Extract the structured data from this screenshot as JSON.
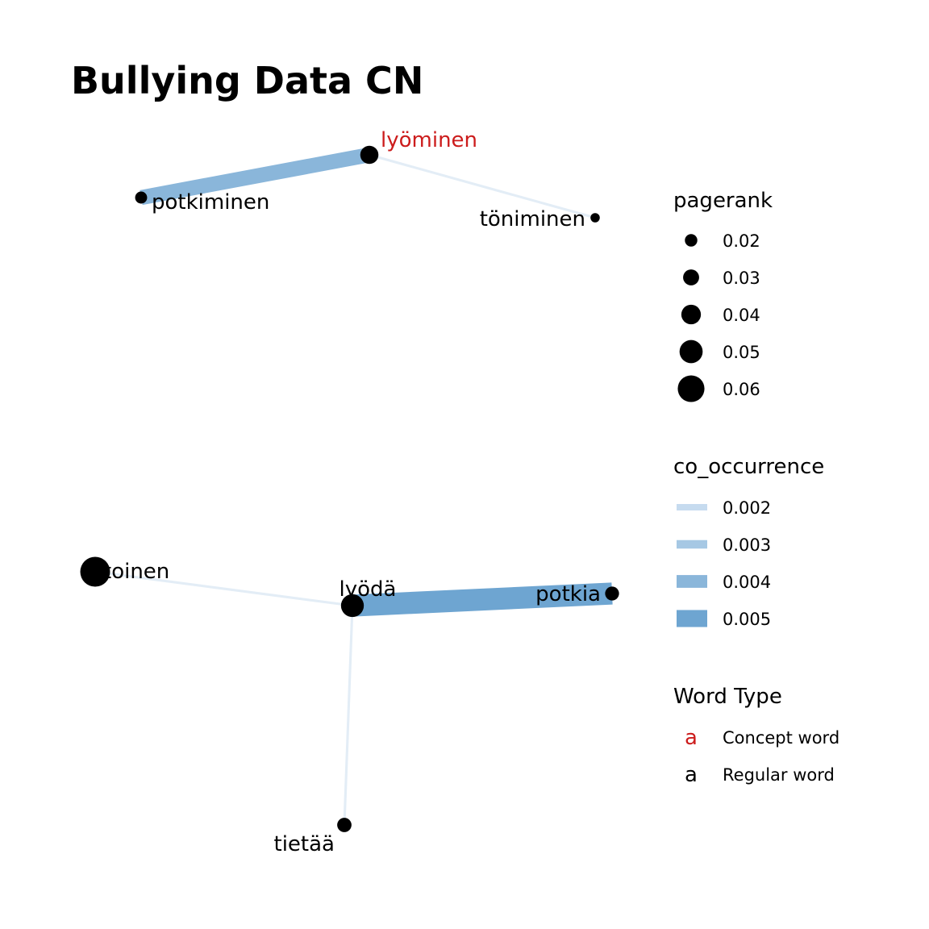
{
  "title": "Bullying Data CN",
  "colors": {
    "concept_word": "#cc1c1c",
    "regular_word": "#000000",
    "node_fill": "#000000",
    "edge_scale": [
      "#e3edf6",
      "#c6dbef",
      "#a6c8e4",
      "#8ab6da",
      "#6ea5d1"
    ]
  },
  "nodes": [
    {
      "id": "lyominen",
      "label": "lyöminen",
      "pagerank": 0.032,
      "type": "concept"
    },
    {
      "id": "potkiminen",
      "label": "potkiminen",
      "pagerank": 0.016,
      "type": "regular"
    },
    {
      "id": "toniminen",
      "label": "töniminen",
      "pagerank": 0.009,
      "type": "regular"
    },
    {
      "id": "toinen",
      "label": "toinen",
      "pagerank": 0.062,
      "type": "regular"
    },
    {
      "id": "lyoda",
      "label": "lyödä",
      "pagerank": 0.044,
      "type": "regular"
    },
    {
      "id": "potkia",
      "label": "potkia",
      "pagerank": 0.021,
      "type": "regular"
    },
    {
      "id": "tietaa",
      "label": "tietää",
      "pagerank": 0.022,
      "type": "regular"
    }
  ],
  "edges": [
    {
      "source": "lyominen",
      "target": "potkiminen",
      "co_occurrence": 0.004
    },
    {
      "source": "lyominen",
      "target": "toniminen",
      "co_occurrence": 0.0015
    },
    {
      "source": "toinen",
      "target": "lyoda",
      "co_occurrence": 0.0015
    },
    {
      "source": "lyoda",
      "target": "potkia",
      "co_occurrence": 0.0054
    },
    {
      "source": "lyoda",
      "target": "tietaa",
      "co_occurrence": 0.0015
    }
  ],
  "legend": {
    "pagerank": {
      "title": "pagerank",
      "values": [
        0.02,
        0.03,
        0.04,
        0.05,
        0.06
      ],
      "labels": [
        "0.02",
        "0.03",
        "0.04",
        "0.05",
        "0.06"
      ]
    },
    "co_occurrence": {
      "title": "co_occurrence",
      "values": [
        0.002,
        0.003,
        0.004,
        0.005
      ],
      "labels": [
        "0.002",
        "0.003",
        "0.004",
        "0.005"
      ]
    },
    "word_type": {
      "title": "Word Type",
      "glyph": "a",
      "entries": [
        {
          "label": "Concept word",
          "type": "concept"
        },
        {
          "label": "Regular word",
          "type": "regular"
        }
      ]
    }
  }
}
